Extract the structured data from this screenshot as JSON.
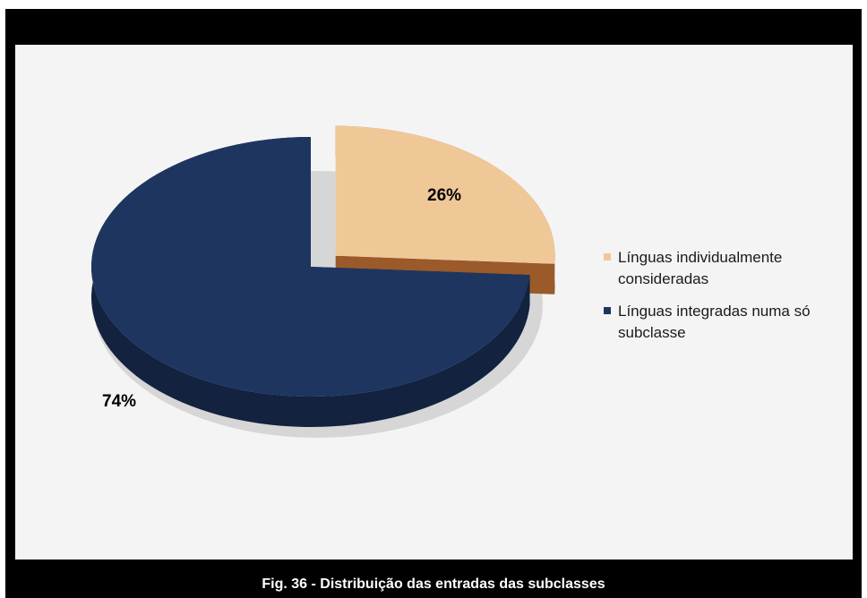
{
  "caption": "Fig. 36 - Distribuição das entradas das subclasses",
  "chart_data": {
    "type": "pie",
    "title": "",
    "slices": [
      {
        "label": "Línguas individualmente consideradas",
        "value": 26,
        "display": "26%",
        "color": "#f0c898",
        "side_color": "#9a5a2a"
      },
      {
        "label": "Línguas integradas numa só subclasse",
        "value": 74,
        "display": "74%",
        "color": "#1e3560",
        "side_color": "#12223f"
      }
    ],
    "legend_position": "right"
  }
}
